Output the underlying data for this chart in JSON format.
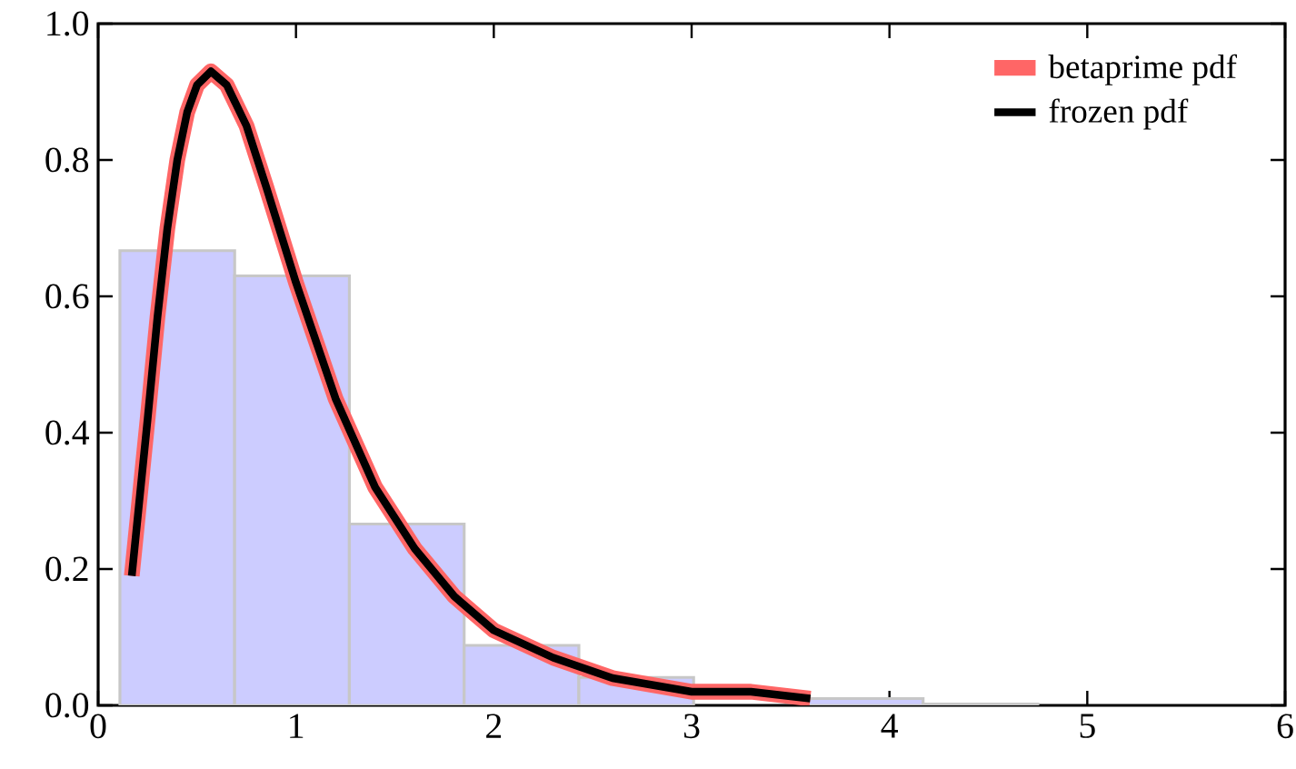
{
  "chart_data": {
    "type": "histogram",
    "bins": [
      0.11,
      0.69,
      1.27,
      1.85,
      2.43,
      3.01,
      3.59,
      4.17,
      4.75
    ],
    "values": [
      0.667,
      0.63,
      0.266,
      0.088,
      0.041,
      null,
      0.01,
      0.002
    ],
    "color": "#ccccff",
    "series": [
      {
        "name": "betaprime pdf",
        "type": "line",
        "color": "#ff6666",
        "x": [
          0.17,
          0.25,
          0.3,
          0.35,
          0.4,
          0.45,
          0.5,
          0.57,
          0.65,
          0.75,
          0.85,
          1.0,
          1.2,
          1.4,
          1.6,
          1.8,
          2.0,
          2.3,
          2.6,
          3.0,
          3.3,
          3.6
        ],
        "values": [
          0.19,
          0.42,
          0.57,
          0.7,
          0.8,
          0.87,
          0.91,
          0.93,
          0.91,
          0.85,
          0.76,
          0.62,
          0.45,
          0.32,
          0.23,
          0.16,
          0.11,
          0.07,
          0.04,
          0.02,
          0.02,
          0.01
        ]
      },
      {
        "name": "frozen pdf",
        "type": "line",
        "color": "#000000",
        "x": [
          0.17,
          0.25,
          0.3,
          0.35,
          0.4,
          0.45,
          0.5,
          0.57,
          0.65,
          0.75,
          0.85,
          1.0,
          1.2,
          1.4,
          1.6,
          1.8,
          2.0,
          2.3,
          2.6,
          3.0,
          3.3,
          3.6
        ],
        "values": [
          0.19,
          0.42,
          0.57,
          0.7,
          0.8,
          0.87,
          0.91,
          0.93,
          0.91,
          0.85,
          0.76,
          0.62,
          0.45,
          0.32,
          0.23,
          0.16,
          0.11,
          0.07,
          0.04,
          0.02,
          0.02,
          0.01
        ]
      }
    ],
    "xlim": [
      0,
      6
    ],
    "ylim": [
      0,
      1
    ],
    "xticks": [
      0,
      1,
      2,
      3,
      4,
      5,
      6
    ],
    "yticks": [
      {
        "value": 0,
        "label": "0.0"
      },
      {
        "value": 0.2,
        "label": "0.2"
      },
      {
        "value": 0.4,
        "label": "0.4"
      },
      {
        "value": 0.6,
        "label": "0.6"
      },
      {
        "value": 0.8,
        "label": "0.8"
      },
      {
        "value": 1,
        "label": "1.0"
      }
    ],
    "legend": "top right",
    "grid": false
  }
}
